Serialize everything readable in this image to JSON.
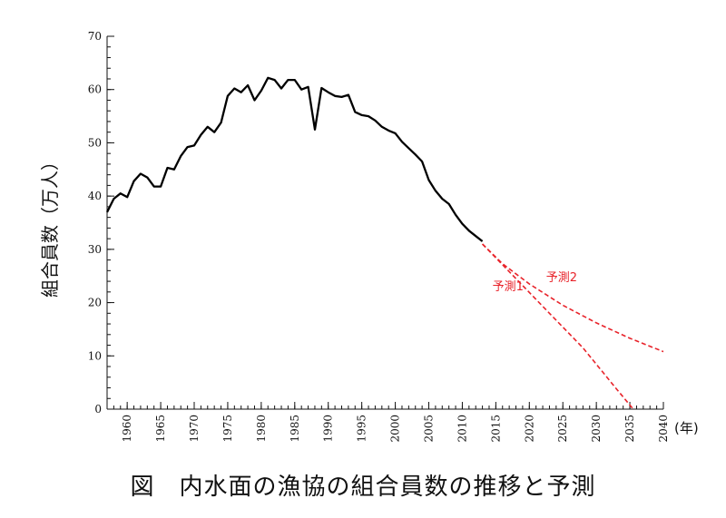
{
  "caption": "図　内水面の漁協の組合員数の推移と予測",
  "chart_data": {
    "type": "line",
    "title": "",
    "ylabel": "組合員数（万人）",
    "xunit": "(年)",
    "xlim": [
      1957,
      2040
    ],
    "ylim": [
      0,
      70
    ],
    "yticks": [
      0,
      10,
      20,
      30,
      40,
      50,
      60,
      70
    ],
    "xticks": [
      1960,
      1965,
      1970,
      1975,
      1980,
      1985,
      1990,
      1995,
      2000,
      2005,
      2010,
      2015,
      2020,
      2025,
      2030,
      2035,
      2040
    ],
    "colors": {
      "actual": "#000000",
      "forecast": "#e8232a"
    },
    "series": [
      {
        "kind": "actual",
        "style": "solid",
        "x": [
          1957,
          1958,
          1959,
          1960,
          1961,
          1962,
          1963,
          1964,
          1965,
          1966,
          1967,
          1968,
          1969,
          1970,
          1971,
          1972,
          1973,
          1974,
          1975,
          1976,
          1977,
          1978,
          1979,
          1980,
          1981,
          1982,
          1983,
          1984,
          1985,
          1986,
          1987,
          1988,
          1989,
          1990,
          1991,
          1992,
          1993,
          1994,
          1995,
          1996,
          1997,
          1998,
          1999,
          2000,
          2001,
          2002,
          2003,
          2004,
          2005,
          2006,
          2007,
          2008,
          2009,
          2010,
          2011,
          2012,
          2013
        ],
        "y": [
          37.0,
          39.5,
          40.5,
          39.8,
          42.8,
          44.2,
          43.5,
          41.8,
          41.8,
          45.3,
          45.0,
          47.5,
          49.2,
          49.5,
          51.5,
          53.0,
          52.0,
          53.8,
          58.8,
          60.2,
          59.5,
          60.8,
          58.0,
          59.8,
          62.2,
          61.8,
          60.2,
          61.8,
          61.8,
          60.0,
          60.5,
          52.5,
          60.3,
          59.5,
          58.8,
          58.6,
          59.0,
          55.8,
          55.2,
          55.0,
          54.2,
          53.0,
          52.3,
          51.8,
          50.2,
          49.0,
          47.8,
          46.5,
          43.0,
          41.0,
          39.5,
          38.5,
          36.5,
          34.8,
          33.5,
          32.5,
          31.5
        ]
      },
      {
        "name": "予測1",
        "kind": "forecast",
        "style": "dashed",
        "x": [
          2013,
          2018,
          2023,
          2028,
          2033,
          2035.5
        ],
        "y": [
          31.0,
          24.5,
          18.0,
          11.5,
          3.8,
          0
        ]
      },
      {
        "name": "予測2",
        "kind": "forecast",
        "style": "dashed",
        "x": [
          2013,
          2016,
          2020,
          2025,
          2030,
          2035,
          2040
        ],
        "y": [
          31.0,
          27.3,
          23.5,
          19.5,
          16.2,
          13.3,
          10.8
        ]
      }
    ],
    "annotations": [
      {
        "text": "予測1",
        "series": 1,
        "x": 2014.5,
        "y": 22.3
      },
      {
        "text": "予測2",
        "series": 2,
        "x": 2022.5,
        "y": 24.0
      }
    ]
  }
}
